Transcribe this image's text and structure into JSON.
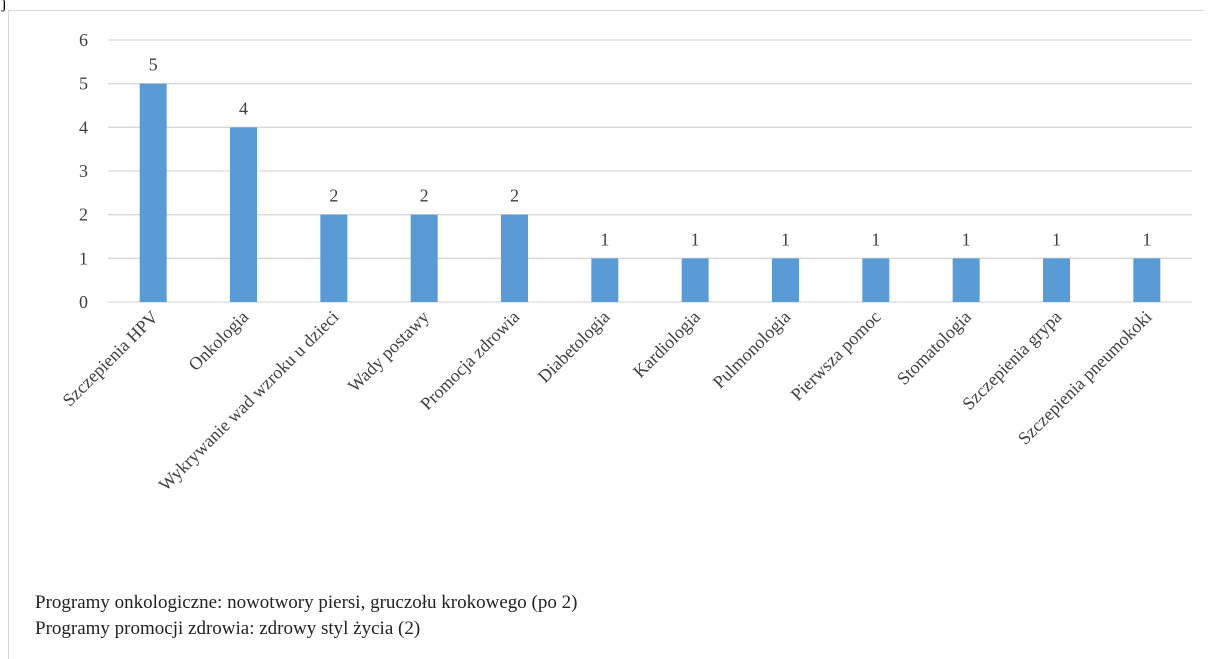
{
  "header_fragment": "j",
  "chart_data": {
    "type": "bar",
    "categories": [
      "Szczepienia HPV",
      "Onkologia",
      "Wykrywanie wad wzroku u dzieci",
      "Wady postawy",
      "Promocja zdrowia",
      "Diabetologia",
      "Kardiologia",
      "Pulmonologia",
      "Pierwsza pomoc",
      "Stomatologia",
      "Szczepienia grypa",
      "Szczepienia pneumokoki"
    ],
    "values": [
      5,
      4,
      2,
      2,
      2,
      1,
      1,
      1,
      1,
      1,
      1,
      1
    ],
    "value_labels": [
      "5",
      "4",
      "2",
      "2",
      "2",
      "1",
      "1",
      "1",
      "1",
      "1",
      "1",
      "1"
    ],
    "y_ticks": [
      0,
      1,
      2,
      3,
      4,
      5,
      6
    ],
    "ylim": [
      0,
      6
    ],
    "grid": true,
    "bar_color": "#5b9bd5",
    "grid_color": "#d9d9d9",
    "title": "",
    "xlabel": "",
    "ylabel": ""
  },
  "notes": [
    "Programy onkologiczne: nowotwory piersi, gruczołu krokowego (po 2)",
    "Programy promocji zdrowia: zdrowy styl życia (2)"
  ]
}
